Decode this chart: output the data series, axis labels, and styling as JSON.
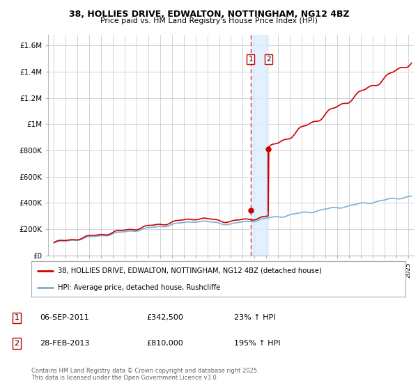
{
  "title_line1": "38, HOLLIES DRIVE, EDWALTON, NOTTINGHAM, NG12 4BZ",
  "title_line2": "Price paid vs. HM Land Registry's House Price Index (HPI)",
  "ylabel_ticks": [
    "£0",
    "£200K",
    "£400K",
    "£600K",
    "£800K",
    "£1M",
    "£1.2M",
    "£1.4M",
    "£1.6M"
  ],
  "ytick_values": [
    0,
    200000,
    400000,
    600000,
    800000,
    1000000,
    1200000,
    1400000,
    1600000
  ],
  "xlim": [
    1994.5,
    2025.5
  ],
  "ylim": [
    0,
    1680000
  ],
  "background_color": "#ffffff",
  "grid_color": "#cccccc",
  "red_line_color": "#cc0000",
  "blue_line_color": "#7bafd4",
  "purchase1_date": 2011.67,
  "purchase1_price": 342500,
  "purchase2_date": 2013.17,
  "purchase2_price": 810000,
  "vline_color": "#dd3333",
  "vshade_color": "#ddeeff",
  "marker_color": "#cc0000",
  "legend_label_red": "38, HOLLIES DRIVE, EDWALTON, NOTTINGHAM, NG12 4BZ (detached house)",
  "legend_label_blue": "HPI: Average price, detached house, Rushcliffe",
  "table_row1": [
    "1",
    "06-SEP-2011",
    "£342,500",
    "23% ↑ HPI"
  ],
  "table_row2": [
    "2",
    "28-FEB-2013",
    "£810,000",
    "195% ↑ HPI"
  ],
  "footer": "Contains HM Land Registry data © Crown copyright and database right 2025.\nThis data is licensed under the Open Government Licence v3.0."
}
